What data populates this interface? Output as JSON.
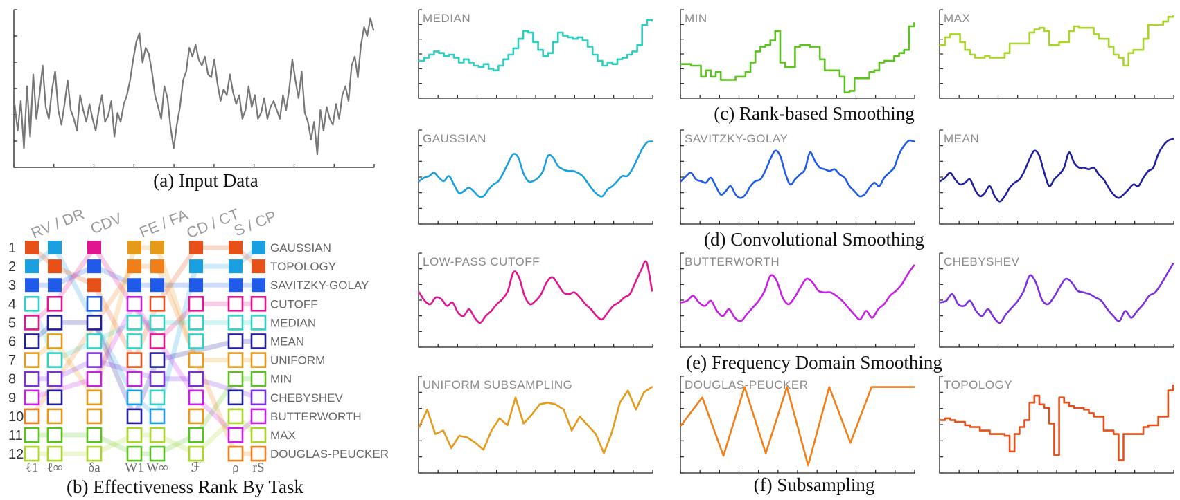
{
  "captions": {
    "a": "(a)  Input Data",
    "b": "(b)  Effectiveness Rank By Task",
    "c": "(c)  Rank-based Smoothing",
    "d": "(d)  Convolutional Smoothing",
    "e": "(e)  Frequency Domain Smoothing",
    "f": "(f)  Subsampling"
  },
  "chart_data": [
    {
      "type": "line",
      "id": "input",
      "title": "",
      "series": [
        {
          "color": "#777777",
          "values": [
            0.4,
            0.22,
            0.42,
            0.1,
            0.52,
            0.18,
            0.6,
            0.3,
            0.46,
            0.66,
            0.38,
            0.3,
            0.5,
            0.62,
            0.36,
            0.26,
            0.4,
            0.56,
            0.36,
            0.3,
            0.22,
            0.46,
            0.36,
            0.28,
            0.4,
            0.3,
            0.22,
            0.36,
            0.46,
            0.28,
            0.32,
            0.42,
            0.18,
            0.34,
            0.28,
            0.4,
            0.46,
            0.56,
            0.7,
            0.82,
            0.88,
            0.68,
            0.78,
            0.74,
            0.62,
            0.46,
            0.38,
            0.3,
            0.52,
            0.44,
            0.24,
            0.1,
            0.26,
            0.38,
            0.56,
            0.62,
            0.78,
            0.72,
            0.8,
            0.7,
            0.66,
            0.72,
            0.6,
            0.58,
            0.7,
            0.54,
            0.42,
            0.5,
            0.46,
            0.6,
            0.48,
            0.4,
            0.46,
            0.3,
            0.36,
            0.52,
            0.38,
            0.46,
            0.3,
            0.34,
            0.44,
            0.3,
            0.38,
            0.42,
            0.36,
            0.3,
            0.46,
            0.36,
            0.5,
            0.7,
            0.56,
            0.44,
            0.62,
            0.34,
            0.28,
            0.16,
            0.28,
            0.06,
            0.36,
            0.22,
            0.38,
            0.3,
            0.26,
            0.4,
            0.3,
            0.46,
            0.52,
            0.42,
            0.66,
            0.72,
            0.58,
            0.8,
            0.92,
            0.86,
            0.98,
            0.9
          ]
        }
      ]
    },
    {
      "type": "table",
      "id": "effectiveness-rank",
      "tasks": [
        "RV / DR",
        "CDV",
        "FE / FA",
        "CD / CT",
        "S / CP"
      ],
      "metrics": [
        "ℓ1",
        "ℓ∞",
        "δa",
        "W1",
        "W∞",
        "ℱ",
        "ρ",
        "rS"
      ],
      "ranks": [
        "1",
        "2",
        "3",
        "4",
        "5",
        "6",
        "7",
        "8",
        "9",
        "10",
        "11",
        "12"
      ],
      "methods_by_rank": [
        {
          "label": "GAUSSIAN",
          "color": "#1a9fe0"
        },
        {
          "label": "TOPOLOGY",
          "color": "#e8501a"
        },
        {
          "label": "SAVITZKY-GOLAY",
          "color": "#1f5be8"
        },
        {
          "label": "CUTOFF",
          "color": "#e0158f"
        },
        {
          "label": "MEDIAN",
          "color": "#2fd2c4"
        },
        {
          "label": "MEAN",
          "color": "#20209e"
        },
        {
          "label": "UNIFORM",
          "color": "#e69a1a"
        },
        {
          "label": "MIN",
          "color": "#5cc21e"
        },
        {
          "label": "CHEBYSHEV",
          "color": "#7a2fe0"
        },
        {
          "label": "BUTTERWORTH",
          "color": "#c81ee6"
        },
        {
          "label": "MAX",
          "color": "#aad629"
        },
        {
          "label": "DOUGLAS-PEUCKER",
          "color": "#f07f1a"
        }
      ],
      "columns": [
        [
          "TOPOLOGY",
          "GAUSSIAN",
          "SAVITZKY-GOLAY",
          "MEDIAN",
          "CUTOFF",
          "MEAN",
          "UNIFORM",
          "CHEBYSHEV",
          "BUTTERWORTH",
          "DOUGLAS-PEUCKER",
          "MIN",
          "MAX"
        ],
        [
          "GAUSSIAN",
          "TOPOLOGY",
          "SAVITZKY-GOLAY",
          "CUTOFF",
          "MEAN",
          "UNIFORM",
          "MEDIAN",
          "CHEBYSHEV",
          "MEAN",
          "UNIFORM",
          "MIN",
          "MAX"
        ],
        [
          "CUTOFF",
          "SAVITZKY-GOLAY",
          "TOPOLOGY",
          "SAVITZKY-GOLAY",
          "MEAN",
          "MEDIAN",
          "CHEBYSHEV",
          "BUTTERWORTH",
          "UNIFORM",
          "UNIFORM",
          "MIN",
          "MAX"
        ],
        [
          "UNIFORM",
          "DOUGLAS-PEUCKER",
          "SAVITZKY-GOLAY",
          "BUTTERWORTH",
          "MEDIAN",
          "MEDIAN",
          "TOPOLOGY",
          "BUTTERWORTH",
          "GAUSSIAN",
          "MEAN",
          "MAX",
          "MIN"
        ],
        [
          "UNIFORM",
          "DOUGLAS-PEUCKER",
          "SAVITZKY-GOLAY",
          "TOPOLOGY",
          "MEDIAN",
          "CUTOFF",
          "MEAN",
          "CHEBYSHEV",
          "MEDIAN",
          "GAUSSIAN",
          "MAX",
          "MIN"
        ],
        [
          "TOPOLOGY",
          "GAUSSIAN",
          "SAVITZKY-GOLAY",
          "CUTOFF",
          "MEDIAN",
          "MEDIAN",
          "UNIFORM",
          "CHEBYSHEV",
          "BUTTERWORTH",
          "UNIFORM",
          "MIN",
          "MAX"
        ],
        [
          "TOPOLOGY",
          "GAUSSIAN",
          "SAVITZKY-GOLAY",
          "CUTOFF",
          "MEDIAN",
          "MEAN",
          "UNIFORM",
          "MIN",
          "MEAN",
          "MAX",
          "BUTTERWORTH",
          "DOUGLAS-PEUCKER"
        ],
        [
          "GAUSSIAN",
          "TOPOLOGY",
          "SAVITZKY-GOLAY",
          "CUTOFF",
          "MEDIAN",
          "MEAN",
          "UNIFORM",
          "MIN",
          "CHEBYSHEV",
          "BUTTERWORTH",
          "MAX",
          "DOUGLAS-PEUCKER"
        ]
      ]
    },
    {
      "type": "line",
      "id": "median",
      "title": "MEDIAN",
      "series": [
        {
          "color": "#2dcfc0",
          "values": [
            0.42,
            0.46,
            0.5,
            0.54,
            0.52,
            0.48,
            0.5,
            0.46,
            0.4,
            0.44,
            0.4,
            0.36,
            0.34,
            0.38,
            0.32,
            0.3,
            0.36,
            0.44,
            0.5,
            0.58,
            0.7,
            0.8,
            0.78,
            0.66,
            0.56,
            0.48,
            0.52,
            0.66,
            0.78,
            0.74,
            0.72,
            0.7,
            0.72,
            0.68,
            0.6,
            0.5,
            0.42,
            0.36,
            0.4,
            0.38,
            0.44,
            0.46,
            0.5,
            0.54,
            0.62,
            0.88,
            0.94,
            0.93
          ]
        }
      ]
    },
    {
      "type": "line",
      "id": "min",
      "title": "MIN",
      "series": [
        {
          "color": "#5cc21e",
          "values": [
            0.38,
            0.38,
            0.36,
            0.36,
            0.22,
            0.3,
            0.22,
            0.28,
            0.18,
            0.18,
            0.18,
            0.22,
            0.22,
            0.28,
            0.4,
            0.54,
            0.6,
            0.62,
            0.68,
            0.8,
            0.4,
            0.34,
            0.34,
            0.6,
            0.62,
            0.62,
            0.6,
            0.6,
            0.44,
            0.3,
            0.3,
            0.3,
            0.22,
            0.02,
            0.04,
            0.2,
            0.2,
            0.2,
            0.28,
            0.3,
            0.4,
            0.42,
            0.42,
            0.48,
            0.52,
            0.56,
            0.86,
            0.9
          ]
        }
      ]
    },
    {
      "type": "line",
      "id": "max",
      "title": "MAX",
      "series": [
        {
          "color": "#aad629",
          "values": [
            0.62,
            0.72,
            0.76,
            0.76,
            0.66,
            0.56,
            0.5,
            0.46,
            0.46,
            0.48,
            0.46,
            0.46,
            0.46,
            0.52,
            0.64,
            0.64,
            0.64,
            0.64,
            0.78,
            0.82,
            0.84,
            0.8,
            0.62,
            0.62,
            0.66,
            0.66,
            0.8,
            0.86,
            0.84,
            0.84,
            0.84,
            0.76,
            0.7,
            0.7,
            0.6,
            0.5,
            0.46,
            0.36,
            0.52,
            0.56,
            0.56,
            0.7,
            0.88,
            0.88,
            0.88,
            0.92,
            0.98,
            0.99
          ]
        }
      ]
    },
    {
      "type": "line",
      "id": "gaussian",
      "title": "GAUSSIAN",
      "series": [
        {
          "color": "#1a9fe0",
          "values": [
            0.46,
            0.5,
            0.52,
            0.56,
            0.5,
            0.46,
            0.52,
            0.42,
            0.32,
            0.34,
            0.38,
            0.34,
            0.28,
            0.28,
            0.36,
            0.42,
            0.46,
            0.56,
            0.68,
            0.78,
            0.74,
            0.56,
            0.46,
            0.46,
            0.5,
            0.58,
            0.76,
            0.74,
            0.64,
            0.6,
            0.58,
            0.58,
            0.56,
            0.52,
            0.44,
            0.36,
            0.3,
            0.28,
            0.36,
            0.4,
            0.46,
            0.52,
            0.52,
            0.6,
            0.72,
            0.84,
            0.92,
            0.93
          ]
        }
      ]
    },
    {
      "type": "line",
      "id": "savitzky-golay",
      "title": "SAVITZKY-GOLAY",
      "series": [
        {
          "color": "#1f5be8",
          "values": [
            0.46,
            0.52,
            0.56,
            0.48,
            0.46,
            0.44,
            0.5,
            0.4,
            0.3,
            0.34,
            0.4,
            0.3,
            0.26,
            0.3,
            0.4,
            0.46,
            0.48,
            0.58,
            0.72,
            0.82,
            0.76,
            0.56,
            0.42,
            0.48,
            0.54,
            0.6,
            0.8,
            0.7,
            0.62,
            0.6,
            0.58,
            0.6,
            0.54,
            0.5,
            0.4,
            0.34,
            0.28,
            0.3,
            0.38,
            0.44,
            0.4,
            0.5,
            0.56,
            0.62,
            0.78,
            0.88,
            0.94,
            0.93
          ]
        }
      ]
    },
    {
      "type": "line",
      "id": "mean",
      "title": "MEAN",
      "series": [
        {
          "color": "#20209e",
          "values": [
            0.46,
            0.5,
            0.56,
            0.48,
            0.42,
            0.44,
            0.48,
            0.36,
            0.28,
            0.32,
            0.4,
            0.28,
            0.22,
            0.28,
            0.38,
            0.44,
            0.48,
            0.58,
            0.72,
            0.82,
            0.76,
            0.56,
            0.4,
            0.48,
            0.54,
            0.62,
            0.8,
            0.68,
            0.62,
            0.62,
            0.6,
            0.62,
            0.54,
            0.48,
            0.38,
            0.3,
            0.26,
            0.3,
            0.36,
            0.42,
            0.4,
            0.5,
            0.58,
            0.62,
            0.78,
            0.88,
            0.94,
            0.96
          ]
        }
      ]
    },
    {
      "type": "line",
      "id": "cutoff",
      "title": "LOW-PASS CUTOFF",
      "series": [
        {
          "color": "#e0158f",
          "values": [
            0.6,
            0.5,
            0.46,
            0.54,
            0.52,
            0.44,
            0.48,
            0.36,
            0.32,
            0.4,
            0.3,
            0.24,
            0.32,
            0.38,
            0.46,
            0.52,
            0.62,
            0.84,
            0.78,
            0.56,
            0.46,
            0.5,
            0.58,
            0.72,
            0.78,
            0.7,
            0.6,
            0.58,
            0.6,
            0.54,
            0.46,
            0.4,
            0.32,
            0.28,
            0.36,
            0.44,
            0.48,
            0.54,
            0.58,
            0.72,
            0.86,
            0.96,
            0.62
          ]
        }
      ]
    },
    {
      "type": "line",
      "id": "butterworth",
      "title": "BUTTERWORTH",
      "series": [
        {
          "color": "#c81ee6",
          "values": [
            0.48,
            0.5,
            0.56,
            0.48,
            0.44,
            0.5,
            0.38,
            0.32,
            0.4,
            0.3,
            0.26,
            0.34,
            0.42,
            0.5,
            0.62,
            0.8,
            0.74,
            0.54,
            0.46,
            0.54,
            0.66,
            0.76,
            0.72,
            0.62,
            0.6,
            0.6,
            0.56,
            0.5,
            0.42,
            0.34,
            0.28,
            0.38,
            0.3,
            0.4,
            0.46,
            0.56,
            0.62,
            0.7,
            0.82,
            0.92
          ]
        }
      ]
    },
    {
      "type": "line",
      "id": "chebyshev",
      "title": "CHEBYSHEV",
      "series": [
        {
          "color": "#7a2fe0",
          "values": [
            0.48,
            0.5,
            0.58,
            0.46,
            0.44,
            0.5,
            0.38,
            0.32,
            0.4,
            0.3,
            0.24,
            0.34,
            0.42,
            0.5,
            0.62,
            0.8,
            0.72,
            0.52,
            0.46,
            0.54,
            0.66,
            0.76,
            0.72,
            0.62,
            0.6,
            0.58,
            0.54,
            0.5,
            0.4,
            0.32,
            0.26,
            0.38,
            0.3,
            0.38,
            0.46,
            0.56,
            0.6,
            0.7,
            0.82,
            0.94
          ]
        }
      ]
    },
    {
      "type": "line",
      "id": "uniform",
      "title": "UNIFORM SUBSAMPLING",
      "series": [
        {
          "color": "#e69a1a",
          "values": [
            0.48,
            0.68,
            0.4,
            0.44,
            0.24,
            0.38,
            0.36,
            0.3,
            0.22,
            0.44,
            0.58,
            0.5,
            0.82,
            0.52,
            0.62,
            0.74,
            0.76,
            0.74,
            0.68,
            0.44,
            0.6,
            0.5,
            0.4,
            0.18,
            0.42,
            0.76,
            0.9,
            0.68,
            0.88,
            0.94
          ]
        }
      ]
    },
    {
      "type": "line",
      "id": "douglas-peucker",
      "title": "DOUGLAS-PEUCKER",
      "series": [
        {
          "color": "#f07f1a",
          "values": [
            0.5,
            0.82,
            0.15,
            0.94,
            0.18,
            0.94,
            0.04,
            0.94,
            0.3,
            0.94,
            0.94,
            0.94
          ]
        }
      ]
    },
    {
      "type": "line",
      "id": "topology",
      "title": "TOPOLOGY",
      "series": [
        {
          "color": "#e8501a",
          "values": [
            0.56,
            0.58,
            0.56,
            0.54,
            0.54,
            0.5,
            0.48,
            0.48,
            0.44,
            0.44,
            0.4,
            0.4,
            0.4,
            0.38,
            0.2,
            0.4,
            0.48,
            0.56,
            0.76,
            0.84,
            0.74,
            0.7,
            0.52,
            0.16,
            0.82,
            0.76,
            0.72,
            0.7,
            0.7,
            0.68,
            0.64,
            0.6,
            0.6,
            0.44,
            0.44,
            0.4,
            0.1,
            0.4,
            0.4,
            0.4,
            0.4,
            0.48,
            0.5,
            0.5,
            0.6,
            0.6,
            0.9,
            0.96
          ]
        }
      ]
    }
  ]
}
